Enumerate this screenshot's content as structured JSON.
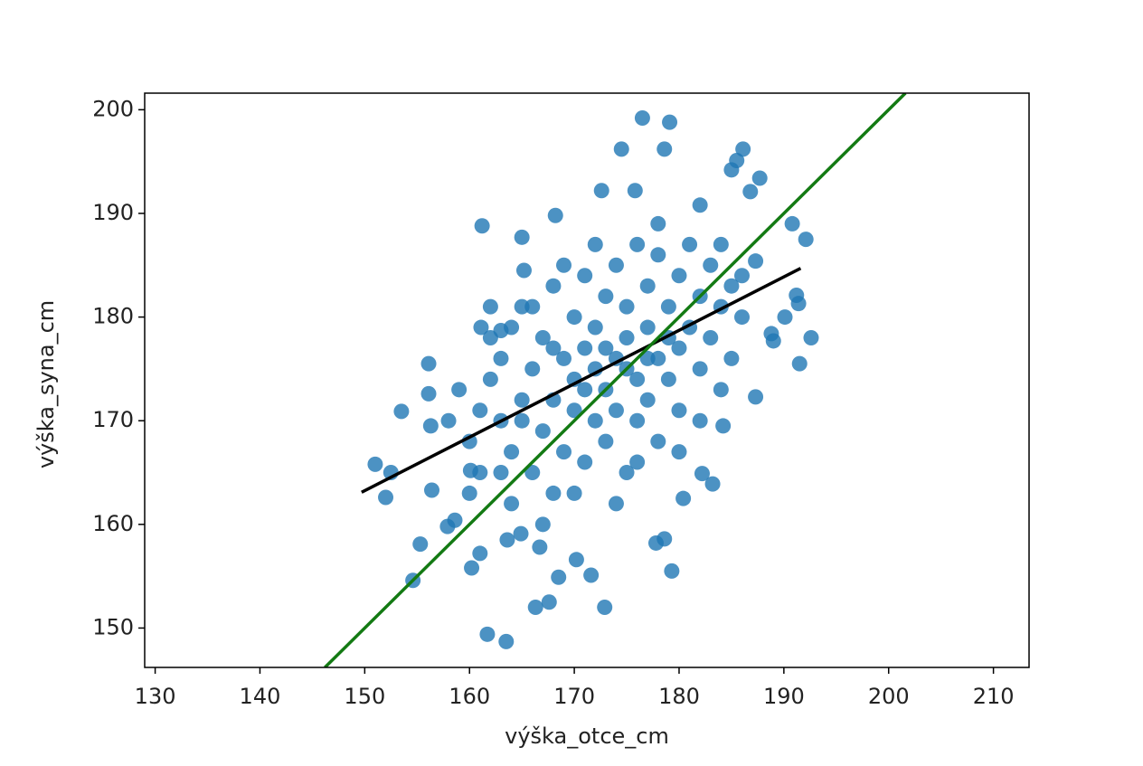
{
  "chart_data": {
    "type": "scatter",
    "x_label": "výška_otce_cm",
    "y_label": "výška_syna_cm",
    "xlim": [
      129.0,
      213.4
    ],
    "ylim": [
      146.2,
      201.6
    ],
    "xticks": [
      130,
      140,
      150,
      160,
      170,
      180,
      190,
      200,
      210
    ],
    "yticks": [
      150,
      160,
      170,
      180,
      190,
      200
    ],
    "points": {
      "color": "#1f77b4",
      "x": [
        151.0,
        152.0,
        152.5,
        153.5,
        154.6,
        155.3,
        156.1,
        156.1,
        156.3,
        156.4,
        161.2,
        161.7,
        163.5,
        165.0,
        165.2,
        168.2,
        166.3,
        167.6,
        168.5,
        170.2,
        171.6,
        172.9,
        174.5,
        172.6,
        175.8,
        176.5,
        178.6,
        179.1,
        177.8,
        178.6,
        179.3,
        180.4,
        182.0,
        182.2,
        183.2,
        184.2,
        185.0,
        186.1,
        185.5,
        186.8,
        187.7,
        187.3,
        187.3,
        188.8,
        189.0,
        190.1,
        190.8,
        191.2,
        191.4,
        192.1,
        191.5,
        192.6,
        161.0,
        160.2,
        163.6,
        164.9,
        166.7,
        163.0,
        161.1,
        158.6,
        157.9,
        160.1,
        160,
        161,
        162,
        163,
        163,
        164,
        164,
        165,
        165,
        166,
        166,
        167,
        167,
        168,
        168,
        168,
        169,
        169,
        170,
        170,
        170,
        171,
        171,
        171,
        172,
        172,
        172,
        173,
        173,
        173,
        174,
        174,
        174,
        175,
        175,
        175,
        176,
        176,
        176,
        177,
        177,
        177,
        178,
        178,
        178,
        179,
        179,
        180,
        180,
        180,
        181,
        181,
        182,
        182,
        183,
        183,
        184,
        184,
        185,
        185,
        159,
        161,
        162,
        164,
        166,
        167,
        169,
        170,
        172,
        174,
        176,
        178,
        180,
        182,
        184,
        186,
        186,
        168,
        171,
        173,
        175,
        177,
        179,
        165,
        163,
        160,
        158,
        162
      ],
      "y": [
        165.8,
        162.6,
        165.0,
        170.9,
        154.6,
        158.1,
        175.5,
        172.6,
        169.5,
        163.3,
        188.8,
        149.4,
        148.7,
        187.7,
        184.5,
        189.8,
        152.0,
        152.5,
        154.9,
        156.6,
        155.1,
        152.0,
        196.2,
        192.2,
        192.2,
        199.2,
        196.2,
        198.8,
        158.2,
        158.6,
        155.5,
        162.5,
        190.8,
        164.9,
        163.9,
        169.5,
        194.2,
        196.2,
        195.1,
        192.1,
        193.4,
        185.4,
        172.3,
        178.4,
        177.7,
        180.0,
        189.0,
        182.1,
        181.3,
        187.5,
        175.5,
        178.0,
        157.2,
        155.8,
        158.5,
        159.1,
        157.8,
        178.7,
        179.0,
        160.4,
        159.8,
        165.2,
        168,
        171,
        174,
        170,
        176,
        167,
        179,
        172,
        181,
        165,
        175,
        169,
        178,
        172,
        183,
        163,
        176,
        167,
        180,
        171,
        174,
        177,
        166,
        184,
        170,
        175,
        179,
        173,
        182,
        168,
        176,
        185,
        171,
        178,
        165,
        181,
        174,
        187,
        170,
        179,
        183,
        172,
        176,
        186,
        168,
        181,
        174,
        184,
        177,
        171,
        187,
        179,
        182,
        175,
        185,
        178,
        181,
        187,
        183,
        176,
        173,
        165,
        178,
        162,
        181,
        160,
        185,
        163,
        187,
        162,
        166,
        189,
        167,
        170,
        173,
        180,
        184,
        177,
        173,
        177,
        175,
        176,
        178,
        170,
        165,
        163,
        170,
        181
      ]
    },
    "lines": [
      {
        "color": "#000000",
        "x": [
          149.7,
          191.6
        ],
        "y": [
          163.1,
          184.7
        ]
      },
      {
        "color": "#137a13",
        "x": [
          146.2,
          201.6
        ],
        "y": [
          146.2,
          201.6
        ]
      }
    ]
  }
}
